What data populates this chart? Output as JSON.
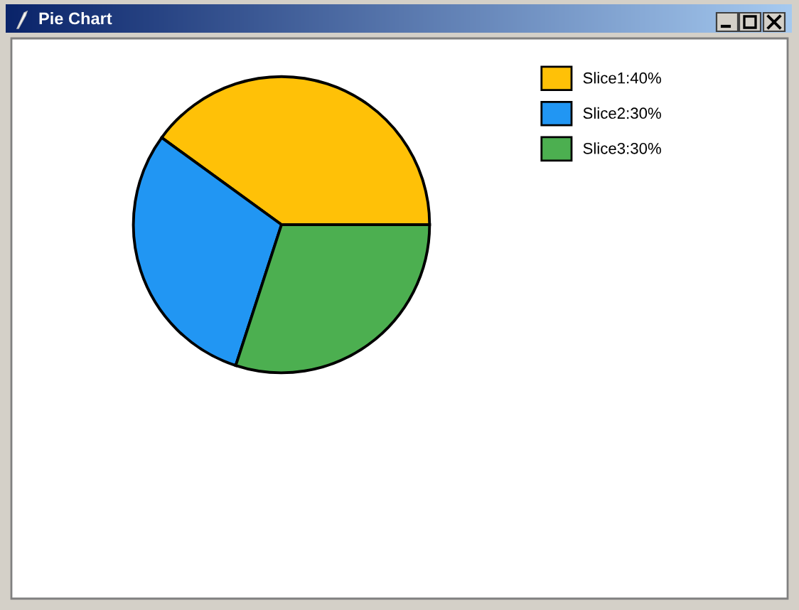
{
  "chart_data": {
    "type": "pie",
    "title": "Pie Chart",
    "categories": [
      "Slice1:40%",
      "Slice2:30%",
      "Slice3:30%"
    ],
    "values": [
      40,
      30,
      30
    ],
    "colors": [
      "#ffc107",
      "#2196f3",
      "#4caf50"
    ],
    "legend": "top right"
  }
}
